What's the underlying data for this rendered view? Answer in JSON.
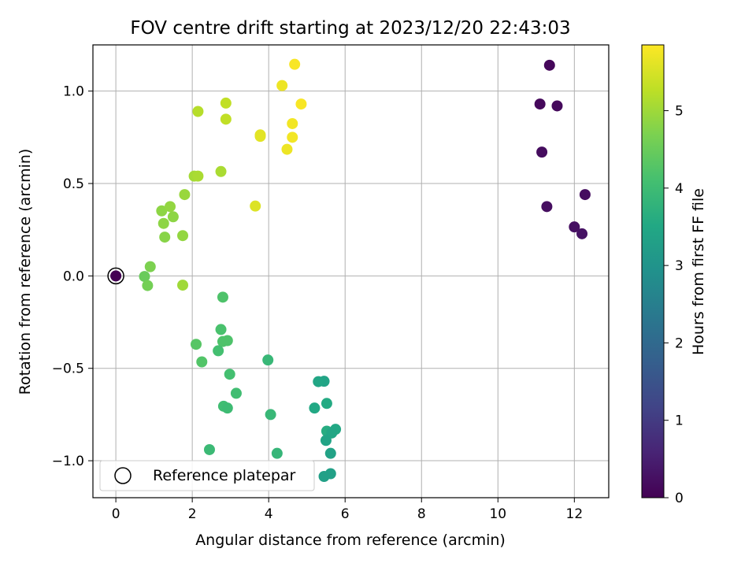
{
  "chart_data": {
    "type": "scatter",
    "title": "FOV centre drift starting at 2023/12/20 22:43:03",
    "xlabel": "Angular distance from reference (arcmin)",
    "ylabel": "Rotation from reference (arcmin)",
    "xlim": [
      -0.6,
      12.9
    ],
    "ylim": [
      -1.2,
      1.25
    ],
    "xticks": [
      0,
      2,
      4,
      6,
      8,
      10,
      12
    ],
    "xtick_labels": [
      "0",
      "2",
      "4",
      "6",
      "8",
      "10",
      "12"
    ],
    "yticks": [
      -1.0,
      -0.5,
      0.0,
      0.5,
      1.0
    ],
    "ytick_labels": [
      "−1.0",
      "−0.5",
      "0.0",
      "0.5",
      "1.0"
    ],
    "grid": true,
    "legend": {
      "entries": [
        "Reference platepar"
      ],
      "placement": "lower-left"
    },
    "colorbar": {
      "label": "Hours from first FF file",
      "range": [
        0,
        5.85
      ],
      "ticks": [
        0,
        1,
        2,
        3,
        4,
        5
      ],
      "tick_labels": [
        "0",
        "1",
        "2",
        "3",
        "4",
        "5"
      ],
      "colormap": "viridis"
    },
    "reference_point": {
      "x": 0.0,
      "y": 0.0
    },
    "points": [
      {
        "x": 0.0,
        "y": 0.0,
        "t": 0.0
      },
      {
        "x": 11.35,
        "y": 1.14,
        "t": 0.1
      },
      {
        "x": 11.1,
        "y": 0.93,
        "t": 0.12
      },
      {
        "x": 11.55,
        "y": 0.92,
        "t": 0.15
      },
      {
        "x": 11.15,
        "y": 0.67,
        "t": 0.18
      },
      {
        "x": 12.28,
        "y": 0.44,
        "t": 0.2
      },
      {
        "x": 11.28,
        "y": 0.375,
        "t": 0.22
      },
      {
        "x": 12.0,
        "y": 0.265,
        "t": 0.25
      },
      {
        "x": 12.2,
        "y": 0.228,
        "t": 0.28
      },
      {
        "x": 5.45,
        "y": -0.57,
        "t": 3.4
      },
      {
        "x": 5.3,
        "y": -0.572,
        "t": 3.45
      },
      {
        "x": 5.2,
        "y": -0.715,
        "t": 3.5
      },
      {
        "x": 5.52,
        "y": -0.69,
        "t": 3.55
      },
      {
        "x": 5.52,
        "y": -0.84,
        "t": 3.6
      },
      {
        "x": 5.75,
        "y": -0.83,
        "t": 3.5
      },
      {
        "x": 5.65,
        "y": -0.85,
        "t": 3.45
      },
      {
        "x": 5.5,
        "y": -0.89,
        "t": 3.4
      },
      {
        "x": 5.62,
        "y": -0.96,
        "t": 3.35
      },
      {
        "x": 5.62,
        "y": -1.07,
        "t": 3.3
      },
      {
        "x": 5.45,
        "y": -1.085,
        "t": 3.3
      },
      {
        "x": 2.8,
        "y": -0.115,
        "t": 4.2
      },
      {
        "x": 2.75,
        "y": -0.29,
        "t": 4.15
      },
      {
        "x": 2.8,
        "y": -0.355,
        "t": 4.2
      },
      {
        "x": 2.92,
        "y": -0.35,
        "t": 4.2
      },
      {
        "x": 2.68,
        "y": -0.405,
        "t": 4.1
      },
      {
        "x": 2.1,
        "y": -0.37,
        "t": 4.3
      },
      {
        "x": 2.25,
        "y": -0.465,
        "t": 4.25
      },
      {
        "x": 2.98,
        "y": -0.532,
        "t": 4.1
      },
      {
        "x": 3.15,
        "y": -0.635,
        "t": 4.05
      },
      {
        "x": 2.82,
        "y": -0.705,
        "t": 4.05
      },
      {
        "x": 2.92,
        "y": -0.715,
        "t": 4.0
      },
      {
        "x": 3.98,
        "y": -0.455,
        "t": 3.9
      },
      {
        "x": 4.05,
        "y": -0.75,
        "t": 3.9
      },
      {
        "x": 2.45,
        "y": -0.94,
        "t": 3.95
      },
      {
        "x": 4.22,
        "y": -0.96,
        "t": 3.85
      },
      {
        "x": 0.75,
        "y": -0.003,
        "t": 4.5
      },
      {
        "x": 0.83,
        "y": -0.052,
        "t": 4.6
      },
      {
        "x": 0.9,
        "y": 0.05,
        "t": 4.7
      },
      {
        "x": 1.75,
        "y": -0.05,
        "t": 5.0
      },
      {
        "x": 1.28,
        "y": 0.21,
        "t": 4.8
      },
      {
        "x": 1.75,
        "y": 0.218,
        "t": 4.9
      },
      {
        "x": 1.25,
        "y": 0.284,
        "t": 4.85
      },
      {
        "x": 1.2,
        "y": 0.352,
        "t": 4.85
      },
      {
        "x": 1.42,
        "y": 0.375,
        "t": 4.9
      },
      {
        "x": 1.5,
        "y": 0.32,
        "t": 4.85
      },
      {
        "x": 1.8,
        "y": 0.44,
        "t": 4.95
      },
      {
        "x": 2.05,
        "y": 0.54,
        "t": 5.05
      },
      {
        "x": 2.15,
        "y": 0.54,
        "t": 5.1
      },
      {
        "x": 2.75,
        "y": 0.565,
        "t": 5.1
      },
      {
        "x": 2.15,
        "y": 0.89,
        "t": 5.2
      },
      {
        "x": 2.88,
        "y": 0.935,
        "t": 5.3
      },
      {
        "x": 2.88,
        "y": 0.848,
        "t": 5.3
      },
      {
        "x": 3.65,
        "y": 0.378,
        "t": 5.55
      },
      {
        "x": 3.78,
        "y": 0.755,
        "t": 5.6
      },
      {
        "x": 3.78,
        "y": 0.763,
        "t": 5.6
      },
      {
        "x": 4.35,
        "y": 1.03,
        "t": 5.7
      },
      {
        "x": 4.68,
        "y": 1.145,
        "t": 5.8
      },
      {
        "x": 4.85,
        "y": 0.93,
        "t": 5.8
      },
      {
        "x": 4.62,
        "y": 0.824,
        "t": 5.75
      },
      {
        "x": 4.62,
        "y": 0.75,
        "t": 5.75
      },
      {
        "x": 4.48,
        "y": 0.685,
        "t": 5.7
      }
    ]
  }
}
